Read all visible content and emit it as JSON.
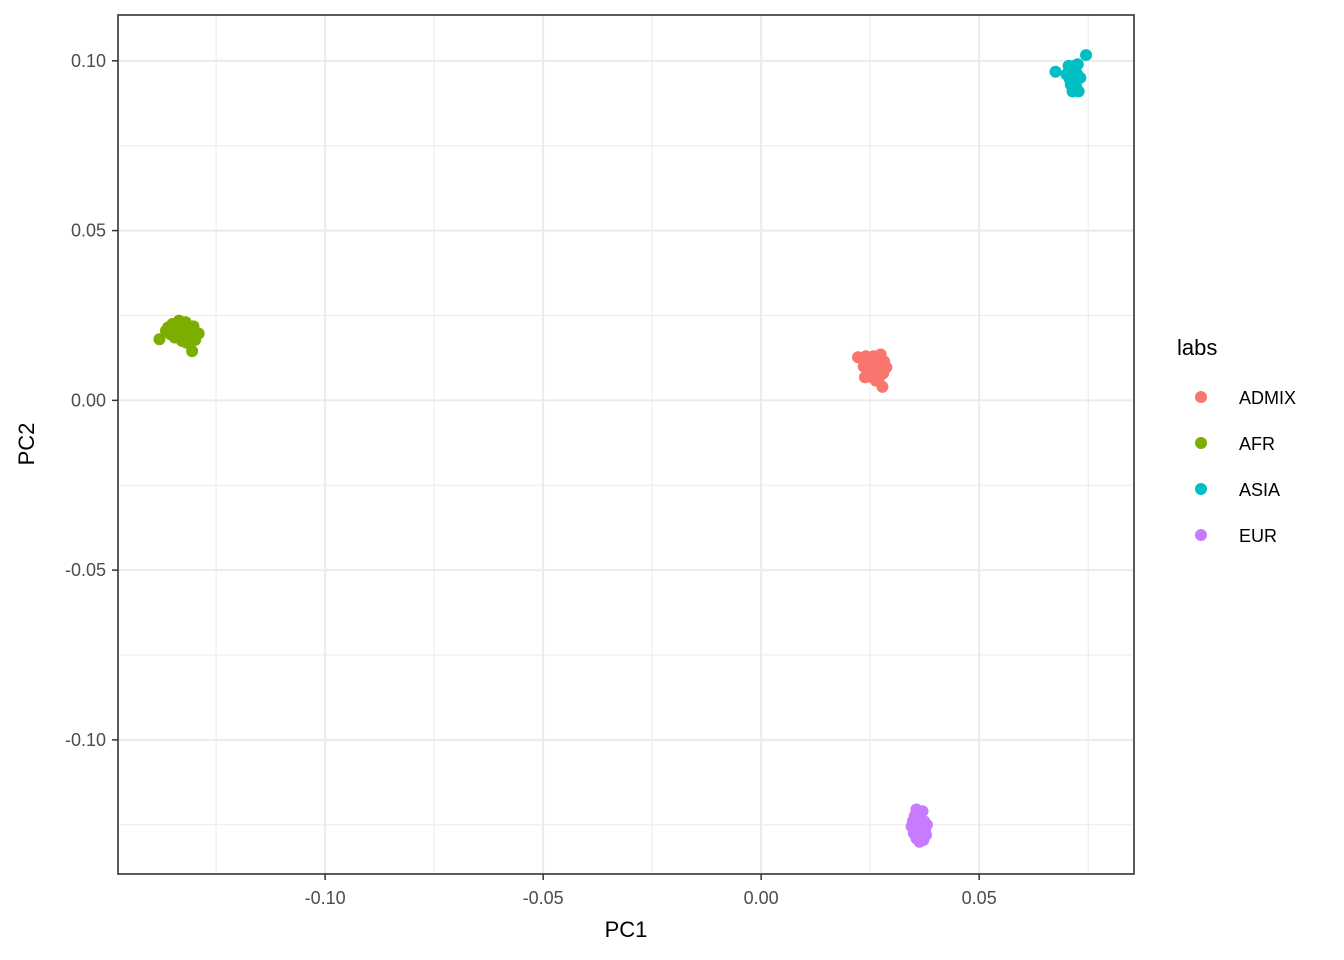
{
  "chart_data": {
    "type": "scatter",
    "xlabel": "PC1",
    "ylabel": "PC2",
    "xlim": [
      -0.1475,
      0.0855
    ],
    "ylim": [
      -0.1395,
      0.1135
    ],
    "x_ticks": [
      -0.1,
      -0.05,
      0.0,
      0.05
    ],
    "x_tick_labels": [
      "-0.10",
      "-0.05",
      "0.00",
      "0.05"
    ],
    "y_ticks": [
      -0.1,
      -0.05,
      0.0,
      0.05,
      0.1
    ],
    "y_tick_labels": [
      "-0.10",
      "-0.05",
      "0.00",
      "0.05",
      "0.10"
    ],
    "grid": true,
    "legend": {
      "title": "labs",
      "position": "right"
    },
    "series": [
      {
        "name": "ADMIX",
        "color": "#F8766D",
        "points": [
          [
            0.0222,
            0.0127
          ],
          [
            0.0235,
            0.01
          ],
          [
            0.024,
            0.013
          ],
          [
            0.0245,
            0.011
          ],
          [
            0.0248,
            0.0085
          ],
          [
            0.025,
            0.007
          ],
          [
            0.0252,
            0.012
          ],
          [
            0.0255,
            0.0095
          ],
          [
            0.0258,
            0.013
          ],
          [
            0.026,
            0.0075
          ],
          [
            0.0262,
            0.0105
          ],
          [
            0.0265,
            0.009
          ],
          [
            0.0268,
            0.012
          ],
          [
            0.027,
            0.0065
          ],
          [
            0.0272,
            0.011
          ],
          [
            0.0274,
            0.0135
          ],
          [
            0.0276,
            0.009
          ],
          [
            0.0278,
            0.004
          ],
          [
            0.028,
            0.008
          ],
          [
            0.0282,
            0.0115
          ],
          [
            0.0287,
            0.0097
          ],
          [
            0.0238,
            0.0068
          ],
          [
            0.0263,
            0.0058
          ],
          [
            0.0255,
            0.0082
          ]
        ]
      },
      {
        "name": "AFR",
        "color": "#7CAE00",
        "points": [
          [
            -0.138,
            0.018
          ],
          [
            -0.1365,
            0.0205
          ],
          [
            -0.136,
            0.0215
          ],
          [
            -0.1355,
            0.0195
          ],
          [
            -0.135,
            0.0225
          ],
          [
            -0.1345,
            0.0185
          ],
          [
            -0.134,
            0.021
          ],
          [
            -0.1338,
            0.0225
          ],
          [
            -0.1335,
            0.0235
          ],
          [
            -0.133,
            0.02
          ],
          [
            -0.1328,
            0.0175
          ],
          [
            -0.1325,
            0.0215
          ],
          [
            -0.1322,
            0.019
          ],
          [
            -0.132,
            0.023
          ],
          [
            -0.1318,
            0.017
          ],
          [
            -0.1315,
            0.0205
          ],
          [
            -0.1312,
            0.018
          ],
          [
            -0.1305,
            0.0145
          ],
          [
            -0.1302,
            0.0218
          ],
          [
            -0.1298,
            0.0178
          ],
          [
            -0.129,
            0.0197
          ],
          [
            -0.1348,
            0.0198
          ],
          [
            -0.1332,
            0.0185
          ]
        ]
      },
      {
        "name": "ASIA",
        "color": "#00BFC4",
        "points": [
          [
            0.0675,
            0.0968
          ],
          [
            0.07,
            0.096
          ],
          [
            0.0705,
            0.0985
          ],
          [
            0.0708,
            0.0945
          ],
          [
            0.071,
            0.093
          ],
          [
            0.0712,
            0.0972
          ],
          [
            0.0714,
            0.091
          ],
          [
            0.0716,
            0.0955
          ],
          [
            0.0718,
            0.0985
          ],
          [
            0.072,
            0.094
          ],
          [
            0.0722,
            0.0925
          ],
          [
            0.0724,
            0.0962
          ],
          [
            0.0726,
            0.099
          ],
          [
            0.0728,
            0.091
          ],
          [
            0.0732,
            0.095
          ],
          [
            0.0745,
            0.1017
          ],
          [
            0.0712,
            0.095
          ],
          [
            0.072,
            0.097
          ]
        ]
      },
      {
        "name": "EUR",
        "color": "#C77CFF",
        "points": [
          [
            0.0345,
            -0.1255
          ],
          [
            0.0348,
            -0.124
          ],
          [
            0.035,
            -0.1275
          ],
          [
            0.0352,
            -0.1225
          ],
          [
            0.0354,
            -0.126
          ],
          [
            0.0356,
            -0.129
          ],
          [
            0.0358,
            -0.1215
          ],
          [
            0.036,
            -0.1245
          ],
          [
            0.0362,
            -0.127
          ],
          [
            0.0364,
            -0.123
          ],
          [
            0.0366,
            -0.1255
          ],
          [
            0.0368,
            -0.1285
          ],
          [
            0.037,
            -0.121
          ],
          [
            0.0372,
            -0.1295
          ],
          [
            0.0374,
            -0.124
          ],
          [
            0.0376,
            -0.1265
          ],
          [
            0.0378,
            -0.128
          ],
          [
            0.038,
            -0.125
          ],
          [
            0.0356,
            -0.1205
          ],
          [
            0.0363,
            -0.13
          ],
          [
            0.0366,
            -0.1238
          ],
          [
            0.0359,
            -0.1262
          ]
        ]
      }
    ]
  }
}
